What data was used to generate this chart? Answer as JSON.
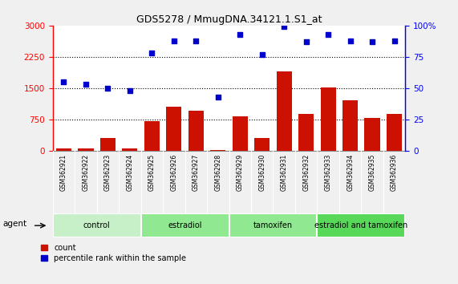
{
  "title": "GDS5278 / MmugDNA.34121.1.S1_at",
  "samples": [
    "GSM362921",
    "GSM362922",
    "GSM362923",
    "GSM362924",
    "GSM362925",
    "GSM362926",
    "GSM362927",
    "GSM362928",
    "GSM362929",
    "GSM362930",
    "GSM362931",
    "GSM362932",
    "GSM362933",
    "GSM362934",
    "GSM362935",
    "GSM362936"
  ],
  "counts": [
    60,
    50,
    300,
    60,
    700,
    1050,
    950,
    20,
    820,
    310,
    1900,
    880,
    1520,
    1200,
    780,
    870
  ],
  "percentile": [
    55,
    53,
    50,
    48,
    78,
    88,
    88,
    43,
    93,
    77,
    99,
    87,
    93,
    88,
    87,
    88
  ],
  "groups": [
    {
      "label": "control",
      "start": 0,
      "end": 4,
      "color": "#c8f0c8"
    },
    {
      "label": "estradiol",
      "start": 4,
      "end": 8,
      "color": "#90e890"
    },
    {
      "label": "tamoxifen",
      "start": 8,
      "end": 12,
      "color": "#90e890"
    },
    {
      "label": "estradiol and tamoxifen",
      "start": 12,
      "end": 16,
      "color": "#58d858"
    }
  ],
  "bar_color": "#cc1100",
  "scatter_color": "#0000cc",
  "ylim_left": [
    0,
    3000
  ],
  "ylim_right": [
    0,
    100
  ],
  "yticks_left": [
    0,
    750,
    1500,
    2250,
    3000
  ],
  "yticks_right": [
    0,
    25,
    50,
    75,
    100
  ],
  "fig_bg": "#f0f0f0",
  "plot_bg": "#ffffff",
  "xtick_bg": "#c8c8c8"
}
